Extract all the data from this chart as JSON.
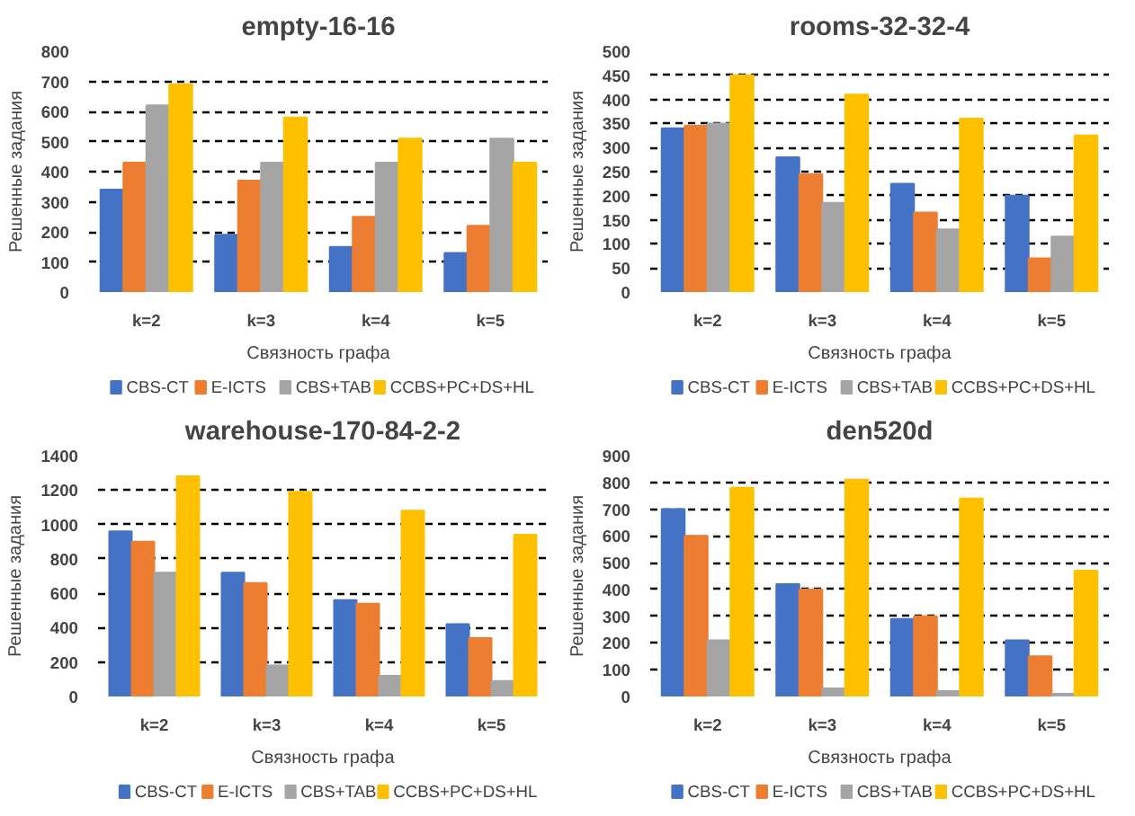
{
  "chart_data": [
    {
      "type": "bar",
      "title": "empty-16-16",
      "xlabel": "Связность графа",
      "ylabel": "Решенные задания",
      "categories": [
        "k=2",
        "k=3",
        "k=4",
        "k=5"
      ],
      "ylim": [
        0,
        800
      ],
      "yticks": [
        0,
        100,
        200,
        300,
        400,
        500,
        600,
        700,
        800
      ],
      "grid": "y",
      "legend": "bottom",
      "series": [
        {
          "name": "CBS-CT",
          "color": "#4472c4",
          "values": [
            340,
            190,
            150,
            130
          ]
        },
        {
          "name": "E-ICTS",
          "color": "#ed7d31",
          "values": [
            430,
            370,
            250,
            220
          ]
        },
        {
          "name": "CBS+TAB",
          "color": "#a5a5a5",
          "values": [
            620,
            430,
            430,
            510
          ]
        },
        {
          "name": "CCBS+PC+DS+HL",
          "color": "#ffc000",
          "values": [
            690,
            580,
            510,
            430
          ]
        }
      ]
    },
    {
      "type": "bar",
      "title": "rooms-32-32-4",
      "xlabel": "Связность графа",
      "ylabel": "Решенные задания",
      "categories": [
        "k=2",
        "k=3",
        "k=4",
        "k=5"
      ],
      "ylim": [
        0,
        500
      ],
      "yticks": [
        0,
        50,
        100,
        150,
        200,
        250,
        300,
        350,
        400,
        450,
        500
      ],
      "grid": "y",
      "legend": "bottom",
      "series": [
        {
          "name": "CBS-CT",
          "color": "#4472c4",
          "values": [
            340,
            280,
            225,
            200
          ]
        },
        {
          "name": "E-ICTS",
          "color": "#ed7d31",
          "values": [
            345,
            245,
            165,
            70
          ]
        },
        {
          "name": "CBS+TAB",
          "color": "#a5a5a5",
          "values": [
            350,
            185,
            130,
            115
          ]
        },
        {
          "name": "CCBS+PC+DS+HL",
          "color": "#ffc000",
          "values": [
            450,
            410,
            360,
            325
          ]
        }
      ]
    },
    {
      "type": "bar",
      "title": "warehouse-170-84-2-2",
      "xlabel": "Связность графа",
      "ylabel": "Решенные задания",
      "categories": [
        "k=2",
        "k=3",
        "k=4",
        "k=5"
      ],
      "ylim": [
        0,
        1400
      ],
      "yticks": [
        0,
        200,
        400,
        600,
        800,
        1000,
        1200,
        1400
      ],
      "grid": "y",
      "legend": "bottom",
      "series": [
        {
          "name": "CBS-CT",
          "color": "#4472c4",
          "values": [
            960,
            720,
            560,
            420
          ]
        },
        {
          "name": "E-ICTS",
          "color": "#ed7d31",
          "values": [
            900,
            660,
            540,
            340
          ]
        },
        {
          "name": "CBS+TAB",
          "color": "#a5a5a5",
          "values": [
            720,
            180,
            120,
            90
          ]
        },
        {
          "name": "CCBS+PC+DS+HL",
          "color": "#ffc000",
          "values": [
            1280,
            1190,
            1080,
            940
          ]
        }
      ]
    },
    {
      "type": "bar",
      "title": "den520d",
      "xlabel": "Связность графа",
      "ylabel": "Решенные задания",
      "categories": [
        "k=2",
        "k=3",
        "k=4",
        "k=5"
      ],
      "ylim": [
        0,
        900
      ],
      "yticks": [
        0,
        100,
        200,
        300,
        400,
        500,
        600,
        700,
        800,
        900
      ],
      "grid": "y",
      "legend": "bottom",
      "series": [
        {
          "name": "CBS-CT",
          "color": "#4472c4",
          "values": [
            700,
            420,
            290,
            210
          ]
        },
        {
          "name": "E-ICTS",
          "color": "#ed7d31",
          "values": [
            600,
            400,
            300,
            150
          ]
        },
        {
          "name": "CBS+TAB",
          "color": "#a5a5a5",
          "values": [
            210,
            30,
            20,
            10
          ]
        },
        {
          "name": "CCBS+PC+DS+HL",
          "color": "#ffc000",
          "values": [
            780,
            810,
            740,
            470
          ]
        }
      ]
    }
  ]
}
